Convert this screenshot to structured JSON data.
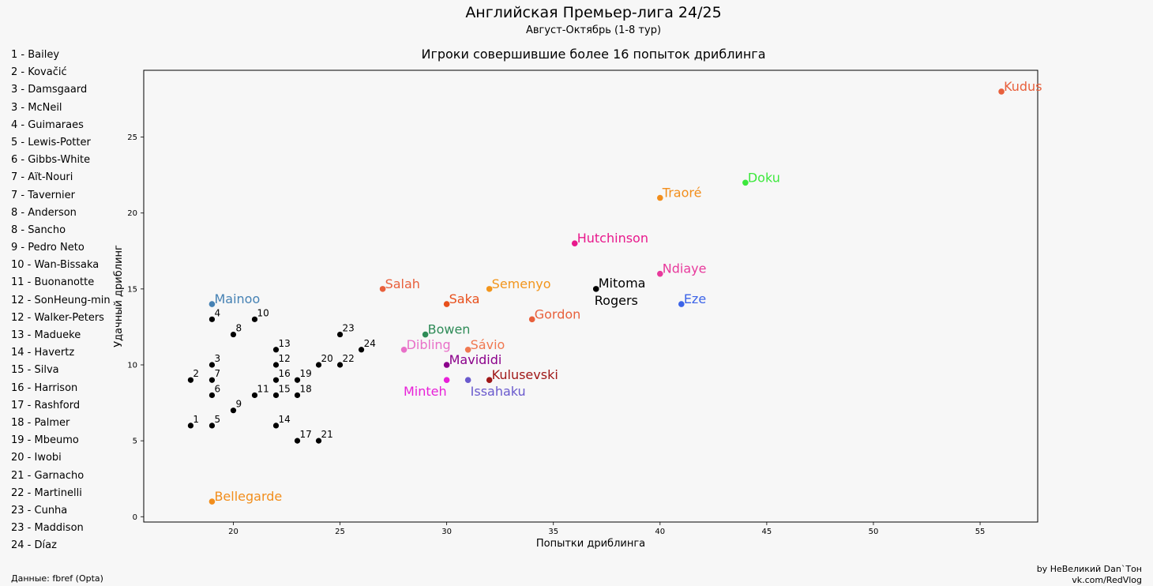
{
  "header": {
    "title": "Английская Премьер-лига 24/25",
    "subtitle": "Август-Октябрь (1-8 тур)"
  },
  "footer": {
    "source": "Данные: fbref (Opta)",
    "credit_line1": "by НеВеликий Dan`Тон",
    "credit_line2": "vk.com/RedVlog"
  },
  "legend": [
    "1 - Bailey",
    "2 - Kovačić",
    "3 - Damsgaard",
    "3 - McNeil",
    "4 - Guimaraes",
    "5 - Lewis-Potter",
    "6 - Gibbs-White",
    "7 - Aït-Nouri",
    "7 - Tavernier",
    "8 - Anderson",
    "8 - Sancho",
    "9 - Pedro Neto",
    "10 - Wan-Bissaka",
    "11 - Buonanotte",
    "12 - SonHeung-min",
    "12 - Walker-Peters",
    "13 - Madueke",
    "14 - Havertz",
    "15 - Silva",
    "16 - Harrison",
    "17 - Rashford",
    "18 - Palmer",
    "19 - Mbeumo",
    "20 - Iwobi",
    "21 - Garnacho",
    "22 - Martinelli",
    "23 - Cunha",
    "23 - Maddison",
    "24 - Díaz"
  ],
  "chart_data": {
    "type": "scatter",
    "title": "Игроки совершившие более 16 попыток дриблинга",
    "xlabel": "Попытки дриблинга",
    "ylabel": "Удачный дриблинг",
    "xlim": [
      15.8,
      57.7
    ],
    "ylim": [
      -0.35,
      29.4
    ],
    "xticks": [
      20,
      25,
      30,
      35,
      40,
      45,
      50,
      55
    ],
    "yticks": [
      0,
      5,
      10,
      15,
      20,
      25
    ],
    "grid": false,
    "named_points": [
      {
        "label": "Kudus",
        "x": 56,
        "y": 28,
        "color": "#e8603c"
      },
      {
        "label": "Doku",
        "x": 44,
        "y": 22,
        "color": "#3ce83c"
      },
      {
        "label": "Traoré",
        "x": 40,
        "y": 21,
        "color": "#f28e1c"
      },
      {
        "label": "Hutchinson",
        "x": 36,
        "y": 18,
        "color": "#e8198c"
      },
      {
        "label": "Ndiaye",
        "x": 40,
        "y": 16,
        "color": "#e8399c"
      },
      {
        "label": "Salah",
        "x": 27,
        "y": 15,
        "color": "#e8603c"
      },
      {
        "label": "Semenyo",
        "x": 32,
        "y": 15,
        "color": "#f2951c"
      },
      {
        "label": "Mitoma\nRogers",
        "x": 37,
        "y": 15,
        "color": "#000000"
      },
      {
        "label": "Mainoo",
        "x": 19,
        "y": 14,
        "color": "#4682b4"
      },
      {
        "label": "Saka",
        "x": 30,
        "y": 14,
        "color": "#e8501c"
      },
      {
        "label": "Eze",
        "x": 41,
        "y": 14,
        "color": "#3c64e8"
      },
      {
        "label": "Gordon",
        "x": 34,
        "y": 13,
        "color": "#e8603c"
      },
      {
        "label": "Bowen",
        "x": 29,
        "y": 12,
        "color": "#2e8b57"
      },
      {
        "label": "Dibling",
        "x": 28,
        "y": 11,
        "color": "#e870c8"
      },
      {
        "label": "Sávio",
        "x": 31,
        "y": 11,
        "color": "#f07850"
      },
      {
        "label": "Mavididi",
        "x": 30,
        "y": 10,
        "color": "#8b008b"
      },
      {
        "label": "Kulusevski",
        "x": 32,
        "y": 9,
        "color": "#a01818"
      },
      {
        "label": "Minteh",
        "x": 30,
        "y": 9,
        "color": "#e820d8"
      },
      {
        "label": "Issahaku",
        "x": 31,
        "y": 9,
        "color": "#6a5acd"
      },
      {
        "label": "Bellegarde",
        "x": 19,
        "y": 1,
        "color": "#f28e1c"
      }
    ],
    "numbered_points": [
      {
        "label": "1",
        "x": 18,
        "y": 6
      },
      {
        "label": "2",
        "x": 18,
        "y": 9
      },
      {
        "label": "3",
        "x": 19,
        "y": 10
      },
      {
        "label": "4",
        "x": 19,
        "y": 13
      },
      {
        "label": "5",
        "x": 19,
        "y": 6
      },
      {
        "label": "6",
        "x": 19,
        "y": 8
      },
      {
        "label": "7",
        "x": 19,
        "y": 9
      },
      {
        "label": "8",
        "x": 20,
        "y": 12
      },
      {
        "label": "9",
        "x": 20,
        "y": 7
      },
      {
        "label": "10",
        "x": 21,
        "y": 13
      },
      {
        "label": "11",
        "x": 21,
        "y": 8
      },
      {
        "label": "12",
        "x": 22,
        "y": 10
      },
      {
        "label": "13",
        "x": 22,
        "y": 11
      },
      {
        "label": "14",
        "x": 22,
        "y": 6
      },
      {
        "label": "15",
        "x": 22,
        "y": 8
      },
      {
        "label": "16",
        "x": 22,
        "y": 9
      },
      {
        "label": "17",
        "x": 23,
        "y": 5
      },
      {
        "label": "18",
        "x": 23,
        "y": 8
      },
      {
        "label": "19",
        "x": 23,
        "y": 9
      },
      {
        "label": "20",
        "x": 24,
        "y": 10
      },
      {
        "label": "21",
        "x": 24,
        "y": 5
      },
      {
        "label": "22",
        "x": 25,
        "y": 10
      },
      {
        "label": "23",
        "x": 25,
        "y": 12
      },
      {
        "label": "24",
        "x": 26,
        "y": 11
      }
    ]
  }
}
